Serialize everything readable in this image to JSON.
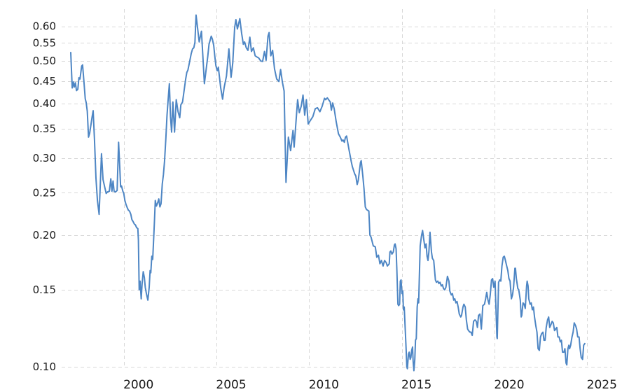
{
  "chart_data": {
    "type": "line",
    "title": "",
    "xlabel": "",
    "ylabel": "",
    "y_scale": "log",
    "grid": "dashed",
    "legend": "none",
    "x_ticks": [
      2000,
      2005,
      2010,
      2015,
      2020,
      2025
    ],
    "x_tick_labels": [
      "2000",
      "2005",
      "2010",
      "2015",
      "2020",
      "2025"
    ],
    "y_ticks": [
      0.1,
      0.15,
      0.2,
      0.25,
      0.3,
      0.35,
      0.4,
      0.45,
      0.5,
      0.55,
      0.6
    ],
    "y_tick_labels": [
      "0.10",
      "0.15",
      "0.20",
      "0.25",
      "0.30",
      "0.35",
      "0.40",
      "0.45",
      "0.50",
      "0.55",
      "0.60"
    ],
    "xlim": [
      1996.65,
      2026.35
    ],
    "ylim": [
      0.1,
      0.66
    ],
    "series_color": "#4e86c4",
    "grid_color": "#d8d8d8",
    "label_color": "#1a1a1a",
    "background_color": "#ffffff",
    "points": [
      [
        1997.14,
        0.523
      ],
      [
        1997.22,
        0.434
      ],
      [
        1997.28,
        0.448
      ],
      [
        1997.33,
        0.436
      ],
      [
        1997.39,
        0.446
      ],
      [
        1997.45,
        0.428
      ],
      [
        1997.52,
        0.431
      ],
      [
        1997.58,
        0.458
      ],
      [
        1997.64,
        0.455
      ],
      [
        1997.73,
        0.487
      ],
      [
        1997.78,
        0.49
      ],
      [
        1997.86,
        0.443
      ],
      [
        1997.92,
        0.41
      ],
      [
        1997.97,
        0.402
      ],
      [
        1998.03,
        0.384
      ],
      [
        1998.1,
        0.335
      ],
      [
        1998.16,
        0.342
      ],
      [
        1998.23,
        0.358
      ],
      [
        1998.29,
        0.372
      ],
      [
        1998.35,
        0.385
      ],
      [
        1998.42,
        0.33
      ],
      [
        1998.5,
        0.27
      ],
      [
        1998.58,
        0.24
      ],
      [
        1998.67,
        0.223
      ],
      [
        1998.8,
        0.307
      ],
      [
        1998.88,
        0.268
      ],
      [
        1998.97,
        0.258
      ],
      [
        1999.05,
        0.249
      ],
      [
        1999.12,
        0.251
      ],
      [
        1999.22,
        0.252
      ],
      [
        1999.3,
        0.269
      ],
      [
        1999.36,
        0.252
      ],
      [
        1999.42,
        0.266
      ],
      [
        1999.48,
        0.252
      ],
      [
        1999.55,
        0.251
      ],
      [
        1999.64,
        0.253
      ],
      [
        1999.72,
        0.326
      ],
      [
        1999.78,
        0.288
      ],
      [
        1999.83,
        0.258
      ],
      [
        1999.88,
        0.259
      ],
      [
        1999.95,
        0.252
      ],
      [
        2000.0,
        0.249
      ],
      [
        2000.06,
        0.24
      ],
      [
        2000.12,
        0.235
      ],
      [
        2000.19,
        0.231
      ],
      [
        2000.25,
        0.228
      ],
      [
        2000.31,
        0.227
      ],
      [
        2000.38,
        0.223
      ],
      [
        2000.44,
        0.217
      ],
      [
        2000.5,
        0.215
      ],
      [
        2000.57,
        0.212
      ],
      [
        2000.63,
        0.211
      ],
      [
        2000.69,
        0.208
      ],
      [
        2000.76,
        0.207
      ],
      [
        2000.79,
        0.195
      ],
      [
        2000.83,
        0.15
      ],
      [
        2000.88,
        0.157
      ],
      [
        2000.94,
        0.143
      ],
      [
        2000.99,
        0.155
      ],
      [
        2001.05,
        0.165
      ],
      [
        2001.11,
        0.16
      ],
      [
        2001.16,
        0.152
      ],
      [
        2001.22,
        0.147
      ],
      [
        2001.3,
        0.142
      ],
      [
        2001.37,
        0.152
      ],
      [
        2001.42,
        0.166
      ],
      [
        2001.46,
        0.164
      ],
      [
        2001.51,
        0.179
      ],
      [
        2001.56,
        0.176
      ],
      [
        2001.61,
        0.195
      ],
      [
        2001.66,
        0.217
      ],
      [
        2001.7,
        0.24
      ],
      [
        2001.76,
        0.233
      ],
      [
        2001.83,
        0.237
      ],
      [
        2001.89,
        0.242
      ],
      [
        2001.95,
        0.232
      ],
      [
        2002.01,
        0.236
      ],
      [
        2002.08,
        0.262
      ],
      [
        2002.14,
        0.275
      ],
      [
        2002.2,
        0.295
      ],
      [
        2002.27,
        0.333
      ],
      [
        2002.33,
        0.375
      ],
      [
        2002.39,
        0.405
      ],
      [
        2002.46,
        0.444
      ],
      [
        2002.52,
        0.373
      ],
      [
        2002.58,
        0.344
      ],
      [
        2002.65,
        0.403
      ],
      [
        2002.71,
        0.363
      ],
      [
        2002.74,
        0.344
      ],
      [
        2002.83,
        0.408
      ],
      [
        2002.93,
        0.383
      ],
      [
        2003.02,
        0.371
      ],
      [
        2003.08,
        0.397
      ],
      [
        2003.17,
        0.403
      ],
      [
        2003.34,
        0.455
      ],
      [
        2003.4,
        0.471
      ],
      [
        2003.46,
        0.477
      ],
      [
        2003.56,
        0.5
      ],
      [
        2003.64,
        0.52
      ],
      [
        2003.71,
        0.533
      ],
      [
        2003.78,
        0.536
      ],
      [
        2003.84,
        0.552
      ],
      [
        2003.9,
        0.637
      ],
      [
        2004.07,
        0.553
      ],
      [
        2004.19,
        0.585
      ],
      [
        2004.28,
        0.5
      ],
      [
        2004.35,
        0.444
      ],
      [
        2004.53,
        0.512
      ],
      [
        2004.6,
        0.546
      ],
      [
        2004.72,
        0.57
      ],
      [
        2004.78,
        0.561
      ],
      [
        2004.85,
        0.543
      ],
      [
        2004.91,
        0.514
      ],
      [
        2004.97,
        0.488
      ],
      [
        2005.04,
        0.475
      ],
      [
        2005.1,
        0.484
      ],
      [
        2005.23,
        0.434
      ],
      [
        2005.33,
        0.409
      ],
      [
        2005.41,
        0.434
      ],
      [
        2005.54,
        0.462
      ],
      [
        2005.67,
        0.533
      ],
      [
        2005.79,
        0.459
      ],
      [
        2005.88,
        0.495
      ],
      [
        2005.98,
        0.596
      ],
      [
        2006.05,
        0.622
      ],
      [
        2006.13,
        0.592
      ],
      [
        2006.26,
        0.625
      ],
      [
        2006.36,
        0.578
      ],
      [
        2006.45,
        0.546
      ],
      [
        2006.52,
        0.553
      ],
      [
        2006.61,
        0.536
      ],
      [
        2006.7,
        0.529
      ],
      [
        2006.8,
        0.567
      ],
      [
        2006.89,
        0.526
      ],
      [
        2006.99,
        0.536
      ],
      [
        2007.09,
        0.514
      ],
      [
        2007.18,
        0.511
      ],
      [
        2007.28,
        0.508
      ],
      [
        2007.39,
        0.5
      ],
      [
        2007.49,
        0.499
      ],
      [
        2007.59,
        0.526
      ],
      [
        2007.68,
        0.502
      ],
      [
        2007.78,
        0.57
      ],
      [
        2007.84,
        0.581
      ],
      [
        2007.93,
        0.514
      ],
      [
        2008.03,
        0.529
      ],
      [
        2008.13,
        0.48
      ],
      [
        2008.25,
        0.455
      ],
      [
        2008.37,
        0.449
      ],
      [
        2008.46,
        0.478
      ],
      [
        2008.56,
        0.447
      ],
      [
        2008.65,
        0.427
      ],
      [
        2008.75,
        0.264
      ],
      [
        2008.88,
        0.335
      ],
      [
        2009.0,
        0.312
      ],
      [
        2009.13,
        0.347
      ],
      [
        2009.19,
        0.318
      ],
      [
        2009.38,
        0.408
      ],
      [
        2009.47,
        0.381
      ],
      [
        2009.57,
        0.394
      ],
      [
        2009.67,
        0.418
      ],
      [
        2009.76,
        0.376
      ],
      [
        2009.85,
        0.408
      ],
      [
        2009.95,
        0.359
      ],
      [
        2010.07,
        0.366
      ],
      [
        2010.2,
        0.373
      ],
      [
        2010.33,
        0.389
      ],
      [
        2010.45,
        0.391
      ],
      [
        2010.58,
        0.383
      ],
      [
        2010.7,
        0.394
      ],
      [
        2010.83,
        0.411
      ],
      [
        2010.89,
        0.408
      ],
      [
        2010.98,
        0.412
      ],
      [
        2011.14,
        0.403
      ],
      [
        2011.2,
        0.386
      ],
      [
        2011.27,
        0.401
      ],
      [
        2011.35,
        0.389
      ],
      [
        2011.46,
        0.363
      ],
      [
        2011.58,
        0.341
      ],
      [
        2011.68,
        0.335
      ],
      [
        2011.77,
        0.328
      ],
      [
        2011.83,
        0.33
      ],
      [
        2011.9,
        0.326
      ],
      [
        2011.96,
        0.335
      ],
      [
        2012.02,
        0.337
      ],
      [
        2012.15,
        0.314
      ],
      [
        2012.27,
        0.295
      ],
      [
        2012.33,
        0.287
      ],
      [
        2012.46,
        0.276
      ],
      [
        2012.52,
        0.273
      ],
      [
        2012.59,
        0.261
      ],
      [
        2012.65,
        0.267
      ],
      [
        2012.77,
        0.293
      ],
      [
        2012.81,
        0.296
      ],
      [
        2012.9,
        0.272
      ],
      [
        2012.96,
        0.255
      ],
      [
        2013.03,
        0.232
      ],
      [
        2013.09,
        0.229
      ],
      [
        2013.15,
        0.228
      ],
      [
        2013.22,
        0.227
      ],
      [
        2013.28,
        0.2
      ],
      [
        2013.34,
        0.198
      ],
      [
        2013.46,
        0.189
      ],
      [
        2013.57,
        0.188
      ],
      [
        2013.65,
        0.178
      ],
      [
        2013.74,
        0.18
      ],
      [
        2013.82,
        0.172
      ],
      [
        2013.9,
        0.175
      ],
      [
        2013.99,
        0.17
      ],
      [
        2014.07,
        0.175
      ],
      [
        2014.16,
        0.173
      ],
      [
        2014.22,
        0.17
      ],
      [
        2014.32,
        0.172
      ],
      [
        2014.36,
        0.183
      ],
      [
        2014.41,
        0.184
      ],
      [
        2014.47,
        0.181
      ],
      [
        2014.54,
        0.183
      ],
      [
        2014.6,
        0.19
      ],
      [
        2014.64,
        0.191
      ],
      [
        2014.69,
        0.186
      ],
      [
        2014.73,
        0.168
      ],
      [
        2014.79,
        0.139
      ],
      [
        2014.83,
        0.138
      ],
      [
        2014.88,
        0.139
      ],
      [
        2014.92,
        0.157
      ],
      [
        2014.96,
        0.158
      ],
      [
        2015.01,
        0.147
      ],
      [
        2015.05,
        0.149
      ],
      [
        2015.09,
        0.135
      ],
      [
        2015.13,
        0.137
      ],
      [
        2015.24,
        0.108
      ],
      [
        2015.27,
        0.1
      ],
      [
        2015.3,
        0.099
      ],
      [
        2015.36,
        0.107
      ],
      [
        2015.4,
        0.108
      ],
      [
        2015.45,
        0.104
      ],
      [
        2015.49,
        0.105
      ],
      [
        2015.53,
        0.109
      ],
      [
        2015.58,
        0.111
      ],
      [
        2015.61,
        0.103
      ],
      [
        2015.65,
        0.098
      ],
      [
        2015.7,
        0.104
      ],
      [
        2015.74,
        0.115
      ],
      [
        2015.78,
        0.116
      ],
      [
        2015.83,
        0.137
      ],
      [
        2015.87,
        0.143
      ],
      [
        2015.91,
        0.14
      ],
      [
        2015.96,
        0.17
      ],
      [
        2015.99,
        0.189
      ],
      [
        2016.06,
        0.199
      ],
      [
        2016.12,
        0.205
      ],
      [
        2016.18,
        0.196
      ],
      [
        2016.25,
        0.187
      ],
      [
        2016.31,
        0.191
      ],
      [
        2016.36,
        0.179
      ],
      [
        2016.41,
        0.175
      ],
      [
        2016.46,
        0.183
      ],
      [
        2016.52,
        0.203
      ],
      [
        2016.6,
        0.183
      ],
      [
        2016.65,
        0.177
      ],
      [
        2016.72,
        0.175
      ],
      [
        2016.81,
        0.158
      ],
      [
        2016.87,
        0.156
      ],
      [
        2016.94,
        0.157
      ],
      [
        2017.0,
        0.155
      ],
      [
        2017.06,
        0.156
      ],
      [
        2017.13,
        0.153
      ],
      [
        2017.19,
        0.154
      ],
      [
        2017.25,
        0.151
      ],
      [
        2017.31,
        0.15
      ],
      [
        2017.38,
        0.152
      ],
      [
        2017.46,
        0.161
      ],
      [
        2017.54,
        0.157
      ],
      [
        2017.59,
        0.149
      ],
      [
        2017.67,
        0.146
      ],
      [
        2017.73,
        0.147
      ],
      [
        2017.8,
        0.142
      ],
      [
        2017.86,
        0.143
      ],
      [
        2017.92,
        0.14
      ],
      [
        2017.98,
        0.141
      ],
      [
        2018.04,
        0.137
      ],
      [
        2018.1,
        0.132
      ],
      [
        2018.18,
        0.13
      ],
      [
        2018.22,
        0.131
      ],
      [
        2018.3,
        0.137
      ],
      [
        2018.35,
        0.139
      ],
      [
        2018.42,
        0.137
      ],
      [
        2018.48,
        0.128
      ],
      [
        2018.55,
        0.122
      ],
      [
        2018.6,
        0.121
      ],
      [
        2018.68,
        0.12
      ],
      [
        2018.73,
        0.12
      ],
      [
        2018.8,
        0.118
      ],
      [
        2018.87,
        0.127
      ],
      [
        2018.95,
        0.128
      ],
      [
        2019.02,
        0.127
      ],
      [
        2019.08,
        0.123
      ],
      [
        2019.14,
        0.131
      ],
      [
        2019.21,
        0.132
      ],
      [
        2019.29,
        0.122
      ],
      [
        2019.37,
        0.138
      ],
      [
        2019.46,
        0.139
      ],
      [
        2019.52,
        0.143
      ],
      [
        2019.58,
        0.148
      ],
      [
        2019.65,
        0.142
      ],
      [
        2019.71,
        0.139
      ],
      [
        2019.77,
        0.146
      ],
      [
        2019.84,
        0.158
      ],
      [
        2019.9,
        0.159
      ],
      [
        2019.96,
        0.152
      ],
      [
        2020.03,
        0.157
      ],
      [
        2020.13,
        0.117
      ],
      [
        2020.15,
        0.116
      ],
      [
        2020.22,
        0.156
      ],
      [
        2020.28,
        0.158
      ],
      [
        2020.34,
        0.157
      ],
      [
        2020.4,
        0.17
      ],
      [
        2020.47,
        0.178
      ],
      [
        2020.53,
        0.179
      ],
      [
        2020.59,
        0.175
      ],
      [
        2020.66,
        0.17
      ],
      [
        2020.72,
        0.166
      ],
      [
        2020.78,
        0.159
      ],
      [
        2020.84,
        0.157
      ],
      [
        2020.91,
        0.143
      ],
      [
        2020.97,
        0.146
      ],
      [
        2021.03,
        0.152
      ],
      [
        2021.1,
        0.168
      ],
      [
        2021.13,
        0.168
      ],
      [
        2021.18,
        0.159
      ],
      [
        2021.26,
        0.151
      ],
      [
        2021.31,
        0.15
      ],
      [
        2021.39,
        0.142
      ],
      [
        2021.44,
        0.13
      ],
      [
        2021.47,
        0.131
      ],
      [
        2021.54,
        0.14
      ],
      [
        2021.6,
        0.139
      ],
      [
        2021.66,
        0.136
      ],
      [
        2021.73,
        0.153
      ],
      [
        2021.76,
        0.157
      ],
      [
        2021.81,
        0.153
      ],
      [
        2021.85,
        0.143
      ],
      [
        2021.92,
        0.139
      ],
      [
        2021.98,
        0.14
      ],
      [
        2022.04,
        0.135
      ],
      [
        2022.1,
        0.137
      ],
      [
        2022.16,
        0.13
      ],
      [
        2022.23,
        0.124
      ],
      [
        2022.29,
        0.12
      ],
      [
        2022.35,
        0.11
      ],
      [
        2022.42,
        0.109
      ],
      [
        2022.48,
        0.117
      ],
      [
        2022.54,
        0.119
      ],
      [
        2022.61,
        0.12
      ],
      [
        2022.67,
        0.115
      ],
      [
        2022.73,
        0.115
      ],
      [
        2022.79,
        0.123
      ],
      [
        2022.86,
        0.128
      ],
      [
        2022.92,
        0.13
      ],
      [
        2022.98,
        0.123
      ],
      [
        2023.05,
        0.125
      ],
      [
        2023.11,
        0.127
      ],
      [
        2023.17,
        0.126
      ],
      [
        2023.24,
        0.121
      ],
      [
        2023.3,
        0.122
      ],
      [
        2023.36,
        0.123
      ],
      [
        2023.42,
        0.117
      ],
      [
        2023.49,
        0.117
      ],
      [
        2023.55,
        0.114
      ],
      [
        2023.61,
        0.115
      ],
      [
        2023.67,
        0.108
      ],
      [
        2023.74,
        0.108
      ],
      [
        2023.8,
        0.11
      ],
      [
        2023.86,
        0.102
      ],
      [
        2023.9,
        0.101
      ],
      [
        2023.96,
        0.11
      ],
      [
        2024.01,
        0.112
      ],
      [
        2024.05,
        0.11
      ],
      [
        2024.11,
        0.112
      ],
      [
        2024.18,
        0.117
      ],
      [
        2024.24,
        0.12
      ],
      [
        2024.3,
        0.126
      ],
      [
        2024.38,
        0.124
      ],
      [
        2024.43,
        0.122
      ],
      [
        2024.49,
        0.117
      ],
      [
        2024.56,
        0.117
      ],
      [
        2024.62,
        0.11
      ],
      [
        2024.68,
        0.105
      ],
      [
        2024.75,
        0.104
      ],
      [
        2024.81,
        0.112
      ],
      [
        2024.87,
        0.113
      ]
    ]
  }
}
